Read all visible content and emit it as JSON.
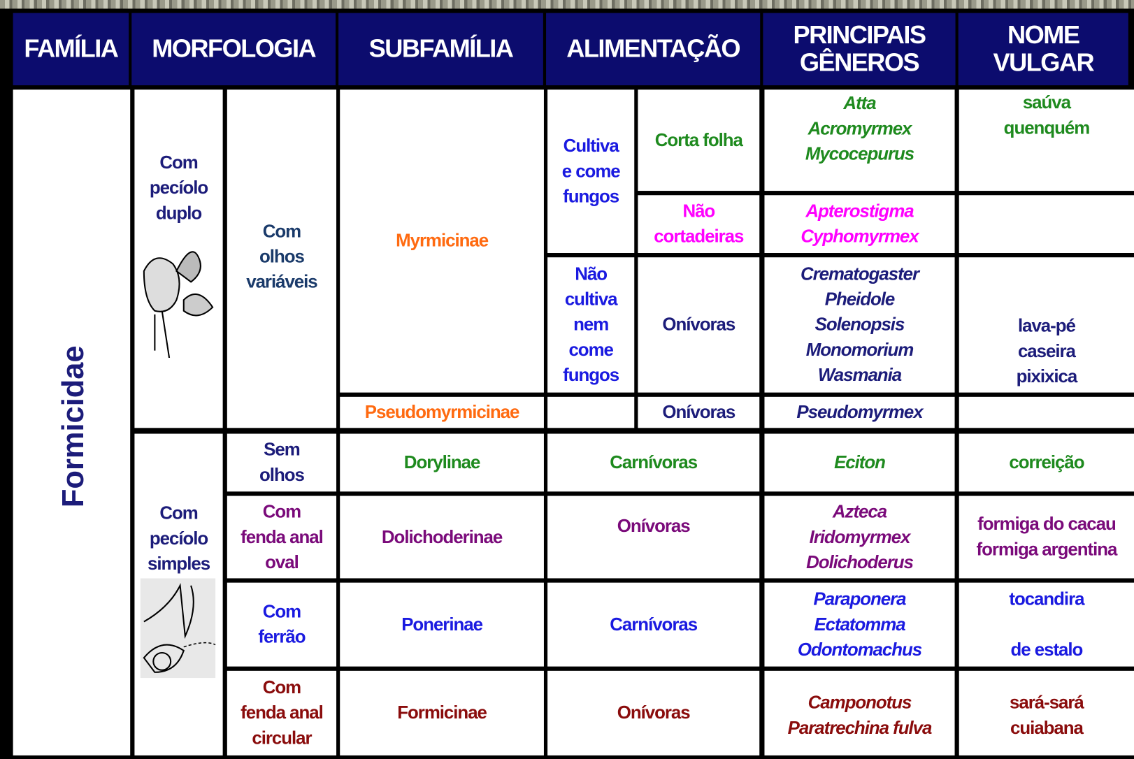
{
  "header": {
    "columns": [
      "FAMÍLIA",
      "MORFOLOGIA",
      "SUBFAMÍLIA",
      "ALIMENTAÇÃO",
      "PRINCIPAIS\nGÊNEROS",
      "NOME\nVULGAR"
    ]
  },
  "table": {
    "family": "Formicidae",
    "cells": [
      "Com\npecíolo\nduplo",
      "Com\npecíolo\nsimples",
      "Com\nolhos\nvariáveis",
      "Sem\nolhos",
      "Com\nfenda anal\noval",
      "Com\nferrão",
      "Com\nfenda anal\ncircular",
      "Myrmicinae",
      "Pseudomyrmicinae",
      "Dorylinae",
      "Dolichoderinae",
      "Ponerinae",
      "Formicinae",
      "Cultiva\ne come\nfungos",
      "Corta folha",
      "Não\ncortadeiras",
      "Não\ncultiva\nnem\ncome\nfungos",
      "Onívoras",
      "Onívoras",
      "Carnívoras",
      "Onívoras",
      "Carnívoras",
      "Onívoras",
      "Atta\nAcromyrmex\nMycocepurus",
      "Apterostigma\nCyphomyrmex",
      "Crematogaster\nPheidole\nSolenopsis\nMonomorium\nWasmania",
      "Pseudomyrmex",
      "Eciton",
      "Azteca\nIridomyrmex\nDolichoderus",
      "Paraponera\nEctatomma\nOdontomachus",
      "Camponotus\nParatrechina fulva",
      "saúva\nquenquém",
      "lava-pé\ncaseira\npixixica",
      "correição",
      "formiga do cacau\nformiga argentina",
      "tocandira\n\nde estalo",
      "sará-sará\ncuiabana"
    ]
  }
}
